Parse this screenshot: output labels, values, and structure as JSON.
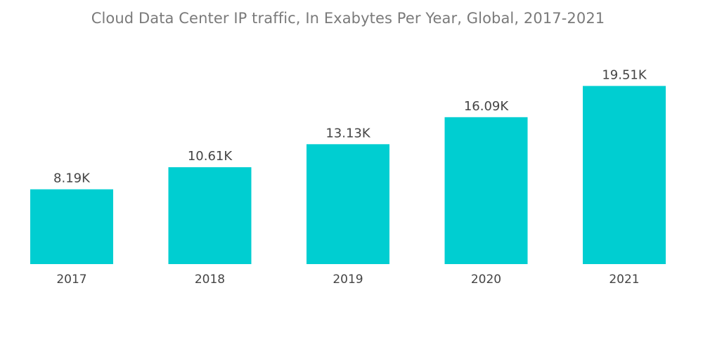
{
  "chart_data": {
    "type": "bar",
    "title": "Cloud Data Center IP traffic, In Exabytes Per Year, Global, 2017-2021",
    "xlabel": "",
    "ylabel": "",
    "categories": [
      "2017",
      "2018",
      "2019",
      "2020",
      "2021"
    ],
    "values": [
      8190,
      10610,
      13130,
      16090,
      19510
    ],
    "value_labels": [
      "8.19K",
      "10.61K",
      "13.13K",
      "16.09K",
      "19.51K"
    ],
    "ylim": [
      0,
      24000
    ],
    "grid": false,
    "legend": "none",
    "colors": {
      "bar": "#00CED1"
    }
  }
}
